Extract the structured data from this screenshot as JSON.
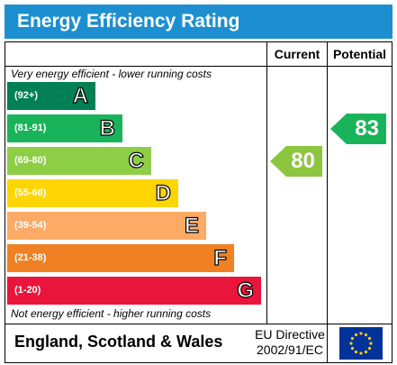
{
  "header": {
    "title": "Energy Efficiency Rating"
  },
  "columns": {
    "current": "Current",
    "potential": "Potential"
  },
  "notes": {
    "top": "Very energy efficient - lower running costs",
    "bottom": "Not energy efficient - higher running costs"
  },
  "bands": [
    {
      "range": "(92+)",
      "letter": "A",
      "color": "#008054"
    },
    {
      "range": "(81-91)",
      "letter": "B",
      "color": "#19b459"
    },
    {
      "range": "(69-80)",
      "letter": "C",
      "color": "#8dce46"
    },
    {
      "range": "(55-68)",
      "letter": "D",
      "color": "#ffd500"
    },
    {
      "range": "(39-54)",
      "letter": "E",
      "color": "#fcaa65"
    },
    {
      "range": "(21-38)",
      "letter": "F",
      "color": "#ef8023"
    },
    {
      "range": "(1-20)",
      "letter": "G",
      "color": "#e9153b"
    }
  ],
  "ratings": {
    "current": {
      "value": "80",
      "band": "C",
      "color": "#8cc63f"
    },
    "potential": {
      "value": "83",
      "band": "B",
      "color": "#19b459"
    }
  },
  "footer": {
    "region": "England, Scotland & Wales",
    "directive_line1": "EU Directive",
    "directive_line2": "2002/91/EC"
  },
  "icons": {
    "flag": "eu-flag-icon"
  }
}
